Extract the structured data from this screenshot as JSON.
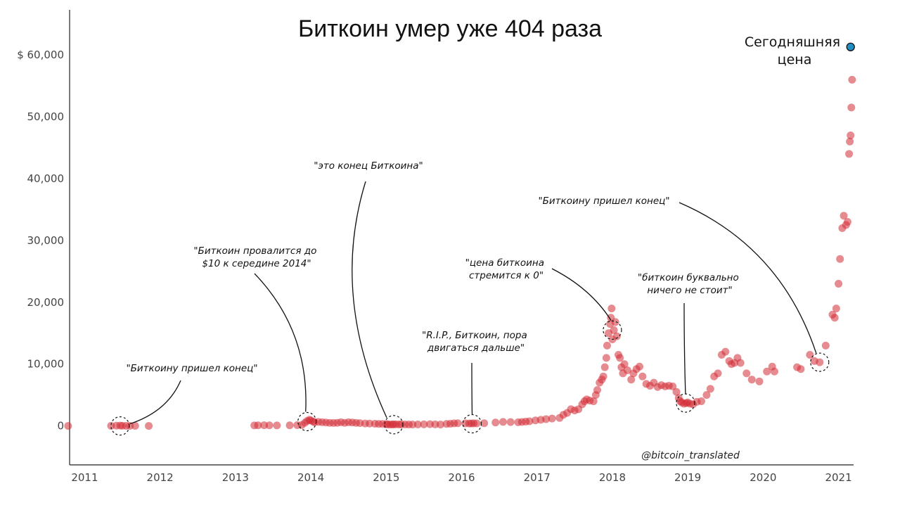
{
  "chart_data": {
    "type": "scatter",
    "title": "Биткоин умер уже 404 раза",
    "credit": "@bitcoin_translated",
    "today_label": [
      "Сегодняшняя",
      "цена"
    ],
    "x_ticks": [
      "2011",
      "2012",
      "2013",
      "2014",
      "2015",
      "2016",
      "2017",
      "2018",
      "2019",
      "2020",
      "2021"
    ],
    "y_ticks": [
      {
        "value": 0,
        "label": "0"
      },
      {
        "value": 10000,
        "label": "10,000"
      },
      {
        "value": 20000,
        "label": "20,000"
      },
      {
        "value": 30000,
        "label": "30,000"
      },
      {
        "value": 40000,
        "label": "40,000"
      },
      {
        "value": 50000,
        "label": "50,000"
      },
      {
        "value": 60000,
        "label": "$ 60,000"
      }
    ],
    "xlim": [
      2010.8,
      2021.2
    ],
    "ylim": [
      -6300,
      67300
    ],
    "today": {
      "x": 2021.16,
      "y": 61300,
      "color": "#1f8fc4"
    },
    "dot_color": "#d12b35",
    "points": [
      [
        2010.78,
        0
      ],
      [
        2011.35,
        20
      ],
      [
        2011.42,
        40
      ],
      [
        2011.47,
        60
      ],
      [
        2011.5,
        30
      ],
      [
        2011.55,
        20
      ],
      [
        2011.6,
        15
      ],
      [
        2011.67,
        10
      ],
      [
        2011.85,
        5
      ],
      [
        2013.25,
        80
      ],
      [
        2013.3,
        100
      ],
      [
        2013.38,
        110
      ],
      [
        2013.45,
        100
      ],
      [
        2013.55,
        80
      ],
      [
        2013.72,
        100
      ],
      [
        2013.82,
        130
      ],
      [
        2013.88,
        150
      ],
      [
        2013.92,
        500
      ],
      [
        2013.95,
        800
      ],
      [
        2013.98,
        1000
      ],
      [
        2014.0,
        900
      ],
      [
        2014.03,
        700
      ],
      [
        2014.05,
        600
      ],
      [
        2014.1,
        650
      ],
      [
        2014.15,
        600
      ],
      [
        2014.2,
        550
      ],
      [
        2014.25,
        500
      ],
      [
        2014.3,
        480
      ],
      [
        2014.35,
        500
      ],
      [
        2014.4,
        600
      ],
      [
        2014.45,
        500
      ],
      [
        2014.5,
        600
      ],
      [
        2014.55,
        550
      ],
      [
        2014.6,
        500
      ],
      [
        2014.65,
        450
      ],
      [
        2014.72,
        400
      ],
      [
        2014.78,
        380
      ],
      [
        2014.85,
        350
      ],
      [
        2014.9,
        330
      ],
      [
        2014.95,
        320
      ],
      [
        2015.0,
        300
      ],
      [
        2015.02,
        250
      ],
      [
        2015.05,
        230
      ],
      [
        2015.08,
        240
      ],
      [
        2015.1,
        260
      ],
      [
        2015.13,
        250
      ],
      [
        2015.17,
        240
      ],
      [
        2015.2,
        250
      ],
      [
        2015.25,
        240
      ],
      [
        2015.3,
        230
      ],
      [
        2015.35,
        230
      ],
      [
        2015.42,
        240
      ],
      [
        2015.5,
        260
      ],
      [
        2015.58,
        280
      ],
      [
        2015.65,
        250
      ],
      [
        2015.72,
        230
      ],
      [
        2015.8,
        330
      ],
      [
        2015.85,
        350
      ],
      [
        2015.9,
        420
      ],
      [
        2015.95,
        440
      ],
      [
        2016.05,
        420
      ],
      [
        2016.1,
        400
      ],
      [
        2016.13,
        400
      ],
      [
        2016.16,
        420
      ],
      [
        2016.2,
        410
      ],
      [
        2016.3,
        440
      ],
      [
        2016.45,
        550
      ],
      [
        2016.55,
        650
      ],
      [
        2016.65,
        620
      ],
      [
        2016.75,
        600
      ],
      [
        2016.8,
        640
      ],
      [
        2016.85,
        700
      ],
      [
        2016.9,
        750
      ],
      [
        2016.98,
        900
      ],
      [
        2017.05,
        1000
      ],
      [
        2017.12,
        1100
      ],
      [
        2017.2,
        1200
      ],
      [
        2017.3,
        1300
      ],
      [
        2017.35,
        1800
      ],
      [
        2017.4,
        2100
      ],
      [
        2017.45,
        2700
      ],
      [
        2017.5,
        2500
      ],
      [
        2017.55,
        2700
      ],
      [
        2017.6,
        3500
      ],
      [
        2017.63,
        4000
      ],
      [
        2017.66,
        4300
      ],
      [
        2017.7,
        4100
      ],
      [
        2017.75,
        4000
      ],
      [
        2017.78,
        5000
      ],
      [
        2017.8,
        5800
      ],
      [
        2017.83,
        7000
      ],
      [
        2017.86,
        7500
      ],
      [
        2017.88,
        8000
      ],
      [
        2017.9,
        9500
      ],
      [
        2017.92,
        11000
      ],
      [
        2017.93,
        13000
      ],
      [
        2017.95,
        15000
      ],
      [
        2017.97,
        16500
      ],
      [
        2017.98,
        17500
      ],
      [
        2017.99,
        19000
      ],
      [
        2018.0,
        14000
      ],
      [
        2018.02,
        15500
      ],
      [
        2018.04,
        16800
      ],
      [
        2018.06,
        14500
      ],
      [
        2018.08,
        11500
      ],
      [
        2018.1,
        11000
      ],
      [
        2018.12,
        9500
      ],
      [
        2018.14,
        8500
      ],
      [
        2018.16,
        10000
      ],
      [
        2018.2,
        9000
      ],
      [
        2018.25,
        7500
      ],
      [
        2018.28,
        8500
      ],
      [
        2018.32,
        9200
      ],
      [
        2018.36,
        9600
      ],
      [
        2018.4,
        8000
      ],
      [
        2018.45,
        6800
      ],
      [
        2018.5,
        6500
      ],
      [
        2018.55,
        7000
      ],
      [
        2018.6,
        6300
      ],
      [
        2018.65,
        6600
      ],
      [
        2018.7,
        6400
      ],
      [
        2018.75,
        6500
      ],
      [
        2018.8,
        6400
      ],
      [
        2018.85,
        5500
      ],
      [
        2018.88,
        4500
      ],
      [
        2018.9,
        4000
      ],
      [
        2018.92,
        3800
      ],
      [
        2018.95,
        3600
      ],
      [
        2018.98,
        3700
      ],
      [
        2019.0,
        3800
      ],
      [
        2019.03,
        3600
      ],
      [
        2019.07,
        3500
      ],
      [
        2019.12,
        3900
      ],
      [
        2019.18,
        4000
      ],
      [
        2019.25,
        5000
      ],
      [
        2019.3,
        6000
      ],
      [
        2019.35,
        8000
      ],
      [
        2019.4,
        8500
      ],
      [
        2019.45,
        11500
      ],
      [
        2019.5,
        12000
      ],
      [
        2019.55,
        10500
      ],
      [
        2019.58,
        10000
      ],
      [
        2019.62,
        10200
      ],
      [
        2019.66,
        11000
      ],
      [
        2019.7,
        10200
      ],
      [
        2019.78,
        8500
      ],
      [
        2019.85,
        7500
      ],
      [
        2019.95,
        7200
      ],
      [
        2020.05,
        8800
      ],
      [
        2020.12,
        9600
      ],
      [
        2020.15,
        8800
      ],
      [
        2020.45,
        9500
      ],
      [
        2020.5,
        9200
      ],
      [
        2020.62,
        11500
      ],
      [
        2020.68,
        10500
      ],
      [
        2020.75,
        10300
      ],
      [
        2020.83,
        13000
      ],
      [
        2020.92,
        18000
      ],
      [
        2020.95,
        17500
      ],
      [
        2020.97,
        19000
      ],
      [
        2021.0,
        23000
      ],
      [
        2021.02,
        27000
      ],
      [
        2021.05,
        32000
      ],
      [
        2021.07,
        34000
      ],
      [
        2021.1,
        32500
      ],
      [
        2021.12,
        33000
      ],
      [
        2021.14,
        44000
      ],
      [
        2021.15,
        46000
      ],
      [
        2021.16,
        47000
      ],
      [
        2021.17,
        51500
      ],
      [
        2021.18,
        56000
      ]
    ],
    "highlights": [
      {
        "x": 2011.47,
        "y": 0
      },
      {
        "x": 2013.95,
        "y": 700
      },
      {
        "x": 2015.1,
        "y": 200
      },
      {
        "x": 2016.14,
        "y": 350
      },
      {
        "x": 2018.0,
        "y": 15500
      },
      {
        "x": 2018.97,
        "y": 3700
      },
      {
        "x": 2020.75,
        "y": 10300
      }
    ],
    "annotations": [
      {
        "lines": [
          "\"Биткоину пришел конец\""
        ],
        "target": 0
      },
      {
        "lines": [
          "\"Биткоин провалится до",
          "$10  к середине 2014\""
        ],
        "target": 1
      },
      {
        "lines": [
          "\"это конец Биткоина\""
        ],
        "target": 2
      },
      {
        "lines": [
          "\"R.I.P., Биткоин, пора",
          "двигаться дальше\""
        ],
        "target": 3
      },
      {
        "lines": [
          "\"цена биткоина",
          "стремится к 0\""
        ],
        "target": 4
      },
      {
        "lines": [
          "\"биткоин буквально",
          "ничего не стоит\""
        ],
        "target": 5
      },
      {
        "lines": [
          "\"Биткоину пришел конец\""
        ],
        "target": 6
      }
    ]
  }
}
